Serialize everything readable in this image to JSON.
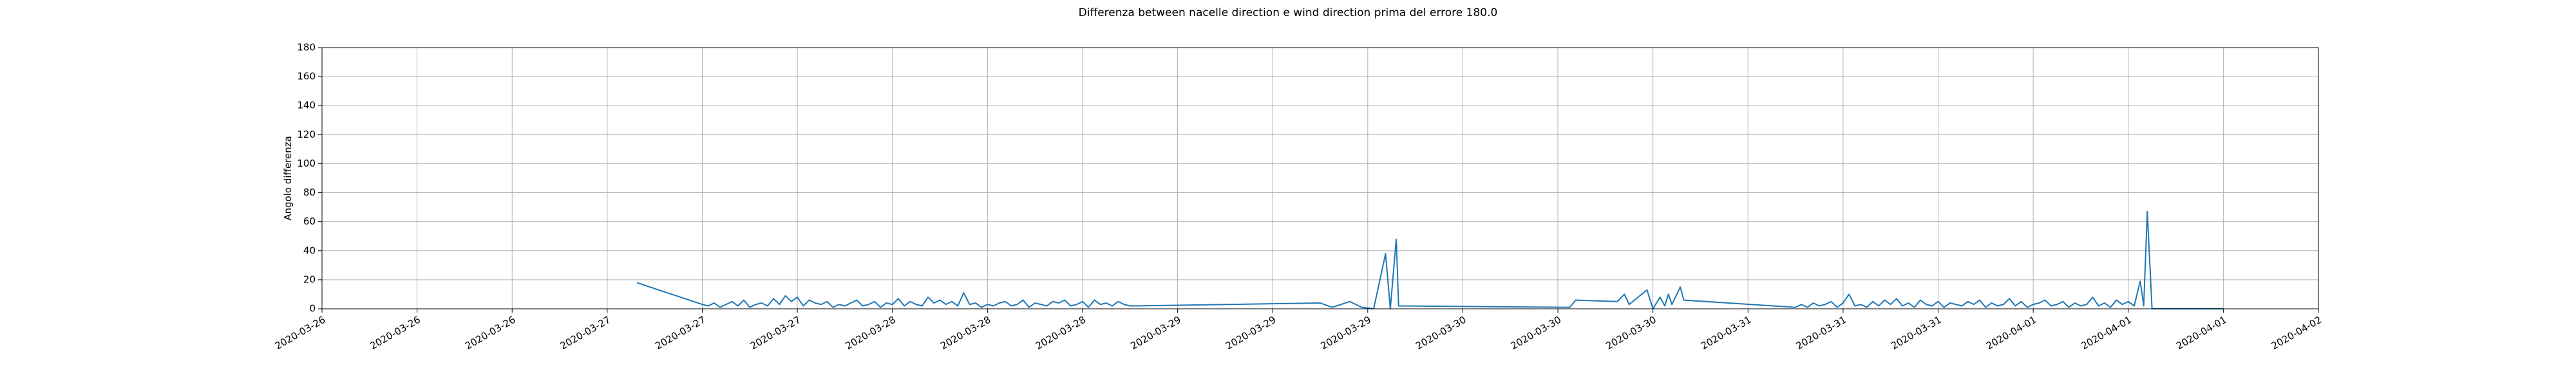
{
  "chart_data": {
    "type": "line",
    "title": "Differenza between nacelle direction e wind direction prima del errore 180.0",
    "ylabel": "Angolo differenza",
    "grid": true,
    "xlim": [
      0,
      168
    ],
    "xticks": [
      {
        "value": 0,
        "label": "2020-03-26"
      },
      {
        "value": 8,
        "label": "2020-03-26"
      },
      {
        "value": 16,
        "label": "2020-03-26"
      },
      {
        "value": 24,
        "label": "2020-03-27"
      },
      {
        "value": 32,
        "label": "2020-03-27"
      },
      {
        "value": 40,
        "label": "2020-03-27"
      },
      {
        "value": 48,
        "label": "2020-03-28"
      },
      {
        "value": 56,
        "label": "2020-03-28"
      },
      {
        "value": 64,
        "label": "2020-03-28"
      },
      {
        "value": 72,
        "label": "2020-03-29"
      },
      {
        "value": 80,
        "label": "2020-03-29"
      },
      {
        "value": 88,
        "label": "2020-03-29"
      },
      {
        "value": 96,
        "label": "2020-03-30"
      },
      {
        "value": 104,
        "label": "2020-03-30"
      },
      {
        "value": 112,
        "label": "2020-03-30"
      },
      {
        "value": 120,
        "label": "2020-03-31"
      },
      {
        "value": 128,
        "label": "2020-03-31"
      },
      {
        "value": 136,
        "label": "2020-03-31"
      },
      {
        "value": 144,
        "label": "2020-04-01"
      },
      {
        "value": 152,
        "label": "2020-04-01"
      },
      {
        "value": 160,
        "label": "2020-04-01"
      },
      {
        "value": 168,
        "label": "2020-04-02"
      }
    ],
    "ylim": [
      0,
      180
    ],
    "yticks": [
      0,
      20,
      40,
      60,
      80,
      100,
      120,
      140,
      160,
      180
    ],
    "x": [
      26.5,
      32,
      32.5,
      33,
      33.5,
      34,
      34.5,
      35,
      35.5,
      36,
      36.5,
      37,
      37.5,
      38,
      38.5,
      39,
      39.5,
      40,
      40.5,
      41,
      41.5,
      42,
      42.5,
      43,
      43.5,
      44,
      44.5,
      45,
      45.5,
      46,
      46.5,
      47,
      47.5,
      48,
      48.5,
      49,
      49.5,
      50,
      50.5,
      51,
      51.5,
      52,
      52.5,
      53,
      53.5,
      54,
      54.5,
      55,
      55.5,
      56,
      56.5,
      57,
      57.5,
      58,
      58.5,
      59,
      59.5,
      60,
      60.5,
      61,
      61.5,
      62,
      62.5,
      63,
      63.5,
      64,
      64.5,
      65,
      65.5,
      66,
      66.5,
      67,
      67.5,
      68,
      68.5,
      84,
      85,
      86.5,
      87.5,
      88.5,
      89.5,
      89.9,
      90.4,
      90.6,
      105,
      105.5,
      109,
      109.6,
      110,
      111.5,
      112,
      112.6,
      113,
      113.3,
      113.6,
      114.3,
      114.6,
      124,
      124.5,
      125,
      125.5,
      126,
      126.5,
      127,
      127.5,
      128,
      128.5,
      129,
      129.5,
      130,
      130.5,
      131,
      131.5,
      132,
      132.5,
      133,
      133.5,
      134,
      134.5,
      135,
      135.5,
      136,
      136.5,
      137,
      137.5,
      138,
      138.5,
      139,
      139.5,
      140,
      140.5,
      141,
      141.5,
      142,
      142.5,
      143,
      143.5,
      144,
      144.5,
      145,
      145.5,
      146,
      146.5,
      147,
      147.5,
      148,
      148.5,
      149,
      149.5,
      150,
      150.5,
      151,
      151.5,
      152,
      152.5,
      153,
      153.3,
      153.6,
      154,
      160
    ],
    "series": [
      {
        "color": "#1f77b4",
        "values": [
          18,
          3,
          2,
          4,
          1,
          3,
          5,
          2,
          6,
          1,
          3,
          4,
          2,
          7,
          3,
          9,
          5,
          8,
          2,
          6,
          4,
          3,
          5,
          1,
          3,
          2,
          4,
          6,
          2,
          3,
          5,
          1,
          4,
          3,
          7,
          2,
          5,
          3,
          2,
          8,
          4,
          6,
          3,
          5,
          2,
          11,
          3,
          4,
          1,
          3,
          2,
          4,
          5,
          2,
          3,
          6,
          1,
          4,
          3,
          2,
          5,
          4,
          6,
          2,
          3,
          5,
          1,
          6,
          3,
          4,
          2,
          5,
          3,
          2,
          2,
          4,
          1,
          5,
          1,
          0,
          38,
          0,
          48,
          2,
          1,
          6,
          5,
          10,
          3,
          13,
          0,
          8,
          2,
          10,
          3,
          15,
          6,
          1,
          3,
          1,
          4,
          2,
          3,
          5,
          1,
          4,
          10,
          2,
          3,
          1,
          5,
          2,
          6,
          3,
          7,
          2,
          4,
          1,
          6,
          3,
          2,
          5,
          1,
          4,
          3,
          2,
          5,
          3,
          6,
          1,
          4,
          2,
          3,
          7,
          2,
          5,
          1,
          3,
          4,
          6,
          2,
          3,
          5,
          1,
          4,
          2,
          3,
          8,
          2,
          4,
          1,
          6,
          3,
          5,
          2,
          19,
          2,
          67,
          0,
          0
        ]
      }
    ]
  }
}
